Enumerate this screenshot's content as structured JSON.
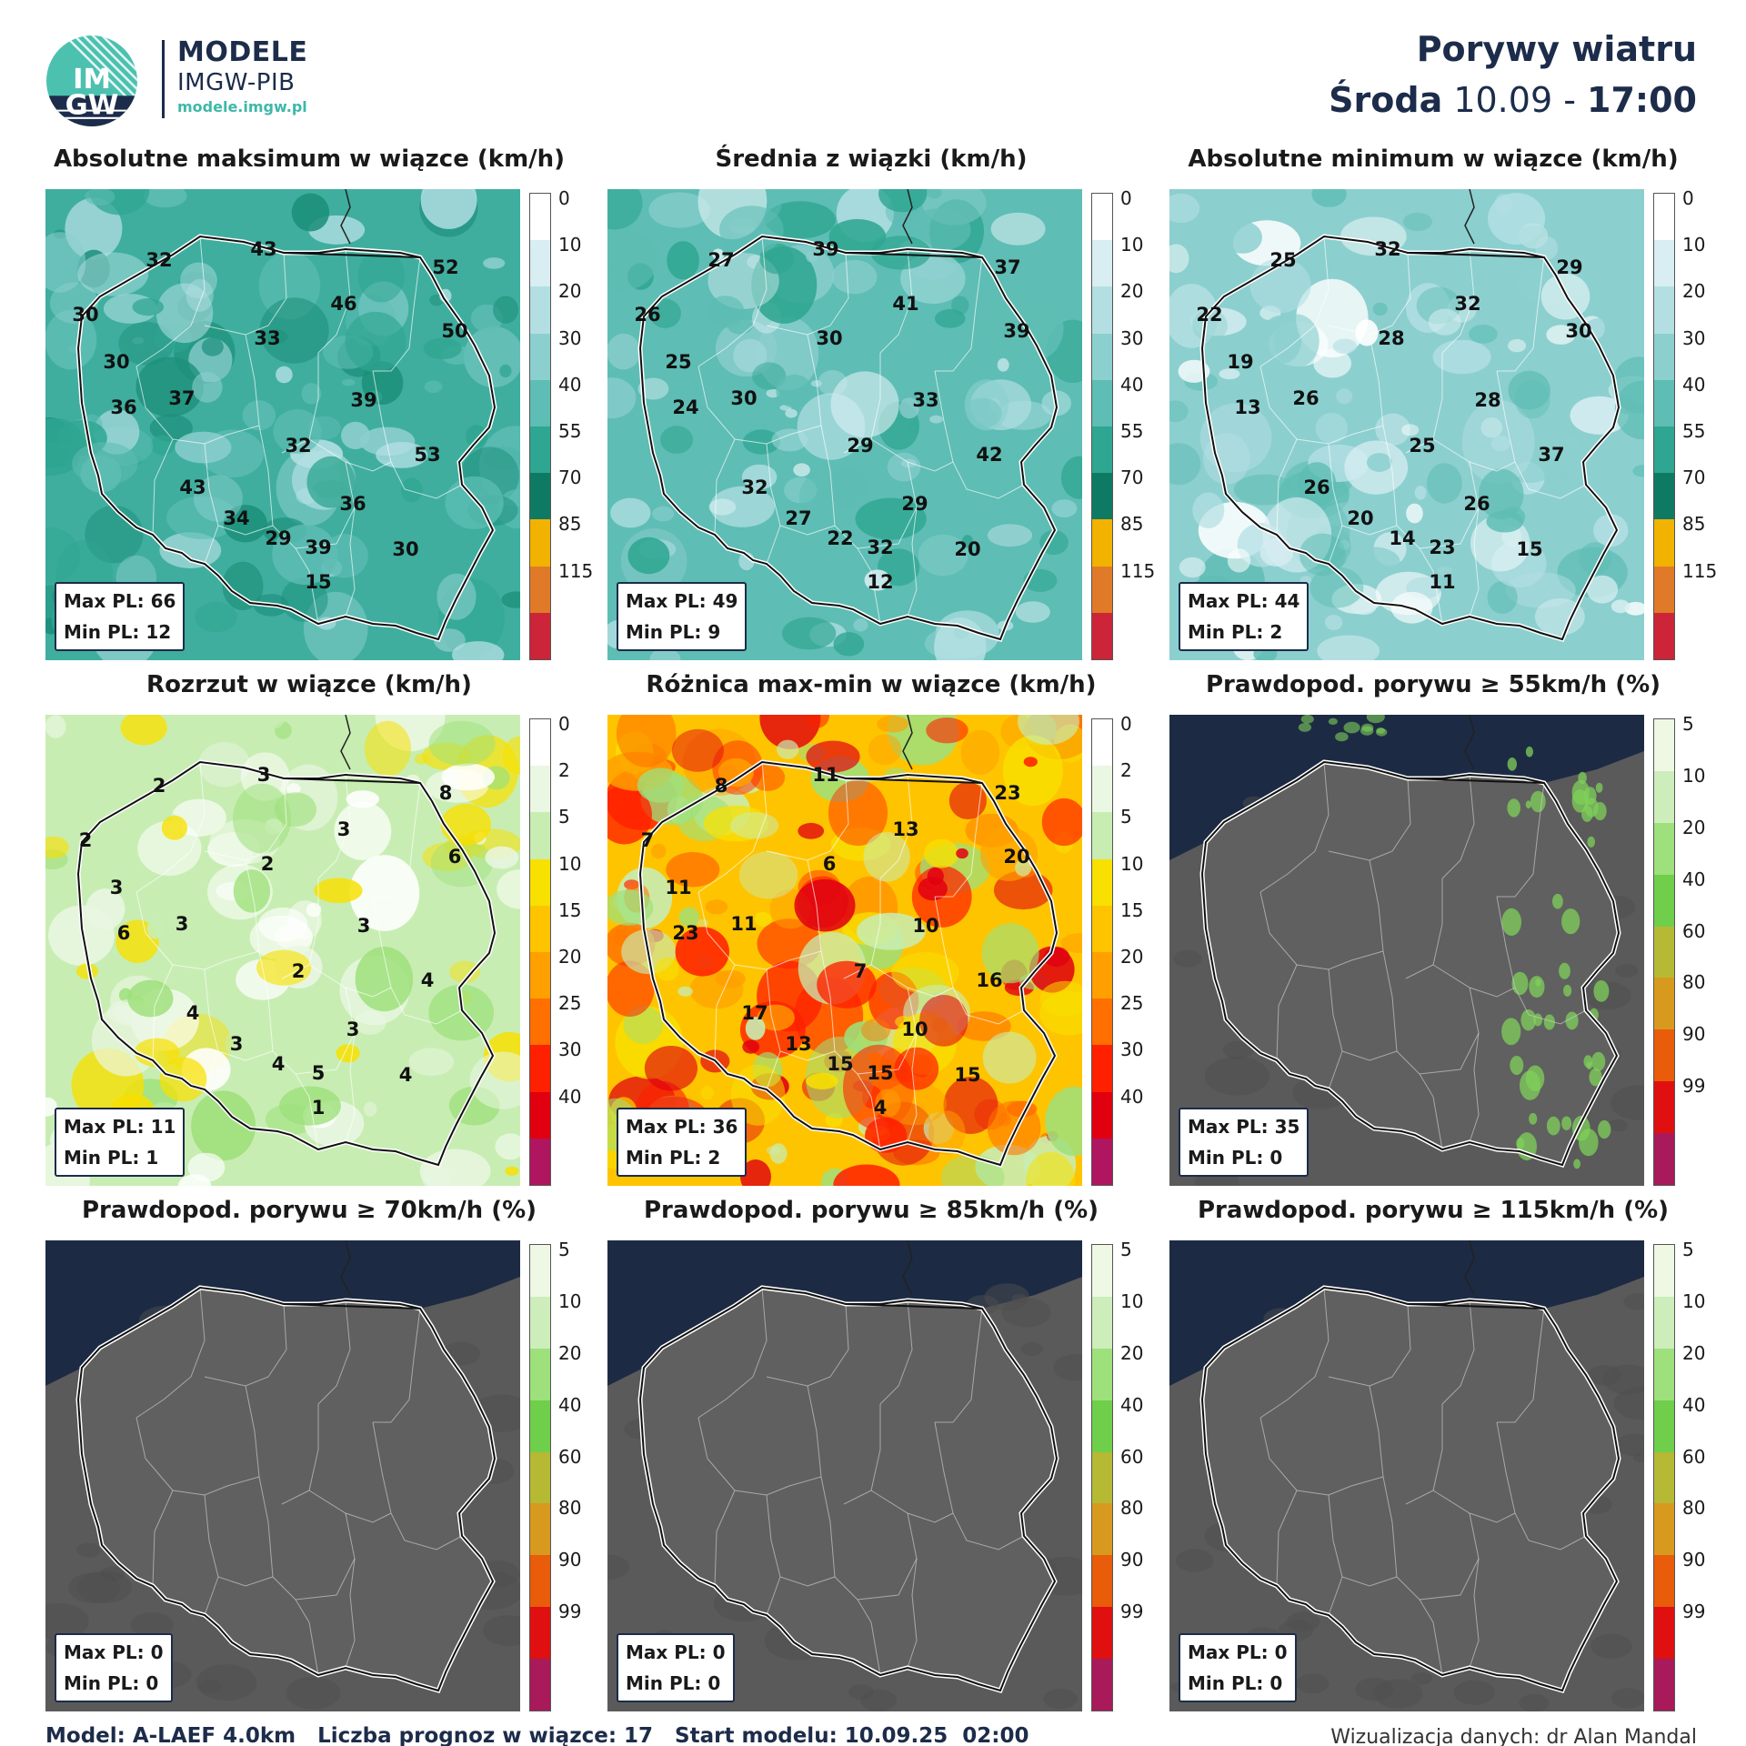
{
  "brand": {
    "logo_top": "IM",
    "logo_bottom": "GW",
    "title": "MODELE",
    "subtitle": "IMGW-PIB",
    "url": "modele.imgw.pl"
  },
  "header": {
    "title": "Porywy wiatru",
    "day": "Środa",
    "date": "10.09",
    "sep": "-",
    "time": "17:00"
  },
  "colors": {
    "navy": "#1c2c4a",
    "teal_accent": "#3fb8a8",
    "land_gray": "#585858",
    "sea_navy": "#1d2a44"
  },
  "colorbars": {
    "speed": {
      "labels": [
        "0",
        "10",
        "20",
        "30",
        "40",
        "55",
        "70",
        "85",
        "115"
      ],
      "colors": [
        "#ffffff",
        "#d8eef2",
        "#b3dfe3",
        "#8ccfcf",
        "#5ebdb4",
        "#2fa691",
        "#0f7a63",
        "#f2b200",
        "#e07a28",
        "#cc2438"
      ]
    },
    "spread": {
      "labels": [
        "0",
        "2",
        "5",
        "10",
        "15",
        "20",
        "25",
        "30",
        "40"
      ],
      "colors": [
        "#ffffff",
        "#eaf7e3",
        "#c8edb3",
        "#f8e000",
        "#ffc400",
        "#ffa000",
        "#ff7000",
        "#ff2000",
        "#e00010",
        "#b01560"
      ]
    },
    "prob": {
      "labels": [
        "5",
        "10",
        "20",
        "40",
        "60",
        "80",
        "90",
        "99"
      ],
      "colors": [
        "#eef8e4",
        "#cdeebb",
        "#9ee07b",
        "#6fcf4a",
        "#b6b934",
        "#d89a1e",
        "#e85c0a",
        "#e01010",
        "#a81a5a"
      ]
    }
  },
  "panels": [
    {
      "title": "Absolutne maksimum w wiązce (km/h)",
      "colorbar": "speed",
      "style": "speed-high",
      "max_label": "Max PL:",
      "max_value": "66",
      "min_label": "Min PL:",
      "min_value": "12",
      "values": [
        "43",
        "32",
        "52",
        "30",
        "46",
        "50",
        "33",
        "30",
        "37",
        "39",
        "36",
        "32",
        "53",
        "43",
        "36",
        "34",
        "29",
        "39",
        "30",
        "15"
      ]
    },
    {
      "title": "Średnia z wiązki (km/h)",
      "colorbar": "speed",
      "style": "speed-mid",
      "max_label": "Max PL:",
      "max_value": "49",
      "min_label": "Min PL:",
      "min_value": "9",
      "values": [
        "39",
        "27",
        "37",
        "26",
        "41",
        "39",
        "30",
        "25",
        "30",
        "33",
        "24",
        "29",
        "42",
        "32",
        "29",
        "27",
        "22",
        "32",
        "20",
        "12"
      ]
    },
    {
      "title": "Absolutne minimum w wiązce (km/h)",
      "colorbar": "speed",
      "style": "speed-low",
      "max_label": "Max PL:",
      "max_value": "44",
      "min_label": "Min PL:",
      "min_value": "2",
      "values": [
        "32",
        "25",
        "29",
        "22",
        "32",
        "30",
        "28",
        "19",
        "26",
        "28",
        "13",
        "25",
        "37",
        "26",
        "26",
        "20",
        "14",
        "23",
        "15",
        "11"
      ]
    },
    {
      "title": "Rozrzut w wiązce (km/h)",
      "colorbar": "spread",
      "style": "spread-low",
      "max_label": "Max PL:",
      "max_value": "11",
      "min_label": "Min PL:",
      "min_value": "1",
      "values": [
        "3",
        "2",
        "8",
        "2",
        "3",
        "6",
        "2",
        "3",
        "3",
        "3",
        "6",
        "2",
        "4",
        "4",
        "3",
        "3",
        "4",
        "5",
        "4",
        "1"
      ]
    },
    {
      "title": "Różnica max-min w wiązce (km/h)",
      "colorbar": "spread",
      "style": "spread-high",
      "max_label": "Max PL:",
      "max_value": "36",
      "min_label": "Min PL:",
      "min_value": "2",
      "values": [
        "11",
        "8",
        "23",
        "7",
        "13",
        "20",
        "6",
        "11",
        "11",
        "10",
        "23",
        "7",
        "16",
        "17",
        "10",
        "13",
        "15",
        "15",
        "15",
        "4"
      ]
    },
    {
      "title": "Prawdopod. porywu ≥ 55km/h (%)",
      "colorbar": "prob",
      "style": "prob-some",
      "max_label": "Max PL:",
      "max_value": "35",
      "min_label": "Min PL:",
      "min_value": "0",
      "values": []
    },
    {
      "title": "Prawdopod. porywu ≥ 70km/h (%)",
      "colorbar": "prob",
      "style": "prob-none",
      "max_label": "Max PL:",
      "max_value": "0",
      "min_label": "Min PL:",
      "min_value": "0",
      "values": []
    },
    {
      "title": "Prawdopod. porywu ≥ 85km/h (%)",
      "colorbar": "prob",
      "style": "prob-none",
      "max_label": "Max PL:",
      "max_value": "0",
      "min_label": "Min PL:",
      "min_value": "0",
      "values": []
    },
    {
      "title": "Prawdopod. porywu ≥ 115km/h (%)",
      "colorbar": "prob",
      "style": "prob-none",
      "max_label": "Max PL:",
      "max_value": "0",
      "min_label": "Min PL:",
      "min_value": "0",
      "values": []
    }
  ],
  "footer": {
    "model": "Model: A-LAEF 4.0km   Liczba prognoz w wiązce: 17   Start modelu: 10.09.25  02:00",
    "credit": "Wizualizacja danych: dr Alan Mandal"
  }
}
